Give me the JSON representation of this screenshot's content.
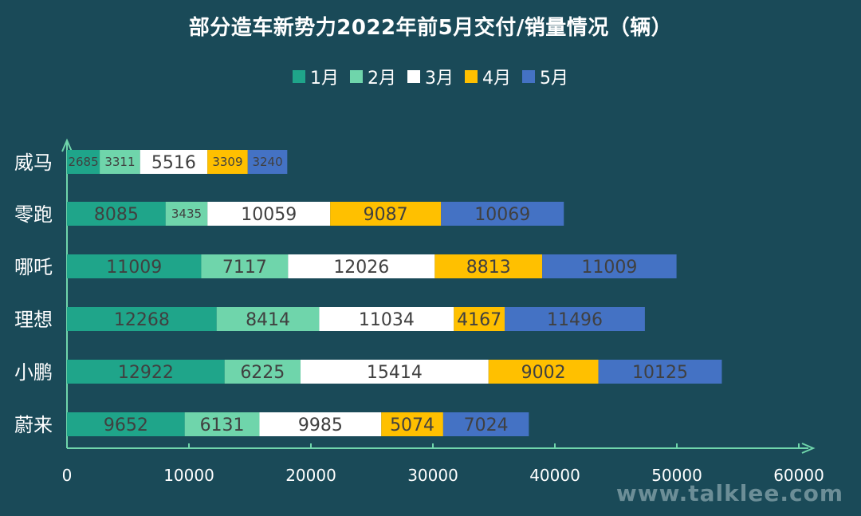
{
  "watermark": "www.talklee.com",
  "chart_data": {
    "type": "bar",
    "orientation": "horizontal",
    "stacked": true,
    "title": "部分造车新势力2022年前5月交付/销量情况（辆）",
    "categories": [
      "威马",
      "零跑",
      "哪吒",
      "理想",
      "小鹏",
      "蔚来"
    ],
    "series": [
      {
        "name": "1月",
        "color": "#1fa58a",
        "values": [
          2685,
          8085,
          11009,
          12268,
          12922,
          9652
        ]
      },
      {
        "name": "2月",
        "color": "#6fd5ab",
        "values": [
          3311,
          3435,
          7117,
          8414,
          6225,
          6131
        ]
      },
      {
        "name": "3月",
        "color": "#ffffff",
        "values": [
          5516,
          10059,
          12026,
          11034,
          15414,
          9985
        ]
      },
      {
        "name": "4月",
        "color": "#ffc000",
        "values": [
          3309,
          9087,
          8813,
          4167,
          9002,
          5074
        ]
      },
      {
        "name": "5月",
        "color": "#4472c4",
        "values": [
          3240,
          10069,
          11009,
          11496,
          10125,
          7024
        ]
      }
    ],
    "xlim": [
      0,
      60000
    ],
    "xticks": [
      "0",
      "10000",
      "20000",
      "30000",
      "40000",
      "50000",
      "60000"
    ],
    "legend_position": "top-center",
    "grid": false,
    "axis_color": "#6fd5ab",
    "category_label_color": "#ffffff",
    "tick_label_color": "#ffffff"
  }
}
